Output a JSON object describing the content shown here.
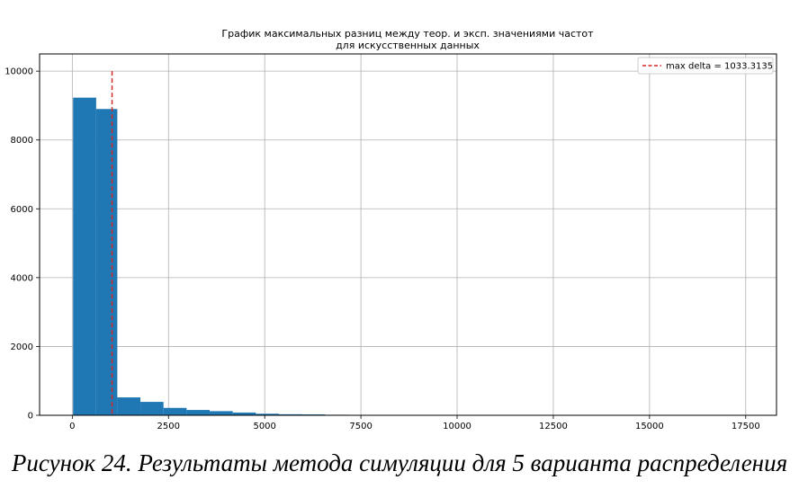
{
  "caption": "Рисунок 24. Результаты метода симуляции для 5 варианта распределения",
  "chart_data": {
    "type": "histogram",
    "title_lines": [
      "График максимальных разниц между теор. и эксп. значениями частот",
      "для искусственных данных"
    ],
    "xlabel": "",
    "ylabel": "",
    "xlim": [
      -850,
      18300
    ],
    "ylim": [
      0,
      10500
    ],
    "x_ticks": [
      0,
      2500,
      5000,
      7500,
      10000,
      12500,
      15000,
      17500
    ],
    "y_ticks": [
      0,
      2000,
      4000,
      6000,
      8000,
      10000
    ],
    "grid": true,
    "bar_color": "#1f77b4",
    "bins": [
      {
        "x0": 20,
        "x1": 620,
        "value": 9230
      },
      {
        "x0": 620,
        "x1": 1170,
        "value": 8900
      },
      {
        "x0": 1170,
        "x1": 1770,
        "value": 520
      },
      {
        "x0": 1770,
        "x1": 2370,
        "value": 390
      },
      {
        "x0": 2370,
        "x1": 2970,
        "value": 215
      },
      {
        "x0": 2970,
        "x1": 3570,
        "value": 155
      },
      {
        "x0": 3570,
        "x1": 4170,
        "value": 120
      },
      {
        "x0": 4170,
        "x1": 4770,
        "value": 80
      },
      {
        "x0": 4770,
        "x1": 5370,
        "value": 45
      },
      {
        "x0": 5370,
        "x1": 5970,
        "value": 30
      },
      {
        "x0": 5970,
        "x1": 6570,
        "value": 25
      },
      {
        "x0": 6570,
        "x1": 7170,
        "value": 15
      },
      {
        "x0": 7170,
        "x1": 7770,
        "value": 10
      },
      {
        "x0": 7770,
        "x1": 8370,
        "value": 6
      },
      {
        "x0": 8370,
        "x1": 8970,
        "value": 5
      },
      {
        "x0": 8970,
        "x1": 9570,
        "value": 3
      },
      {
        "x0": 9570,
        "x1": 10170,
        "value": 3
      },
      {
        "x0": 10170,
        "x1": 10770,
        "value": 2
      }
    ],
    "reference_line": {
      "x": 1033.3135,
      "y_range": [
        0,
        10000
      ],
      "color": "#d62728",
      "style": "dashed",
      "label": "max delta = 1033.3135"
    },
    "legend_position": "top-right"
  }
}
